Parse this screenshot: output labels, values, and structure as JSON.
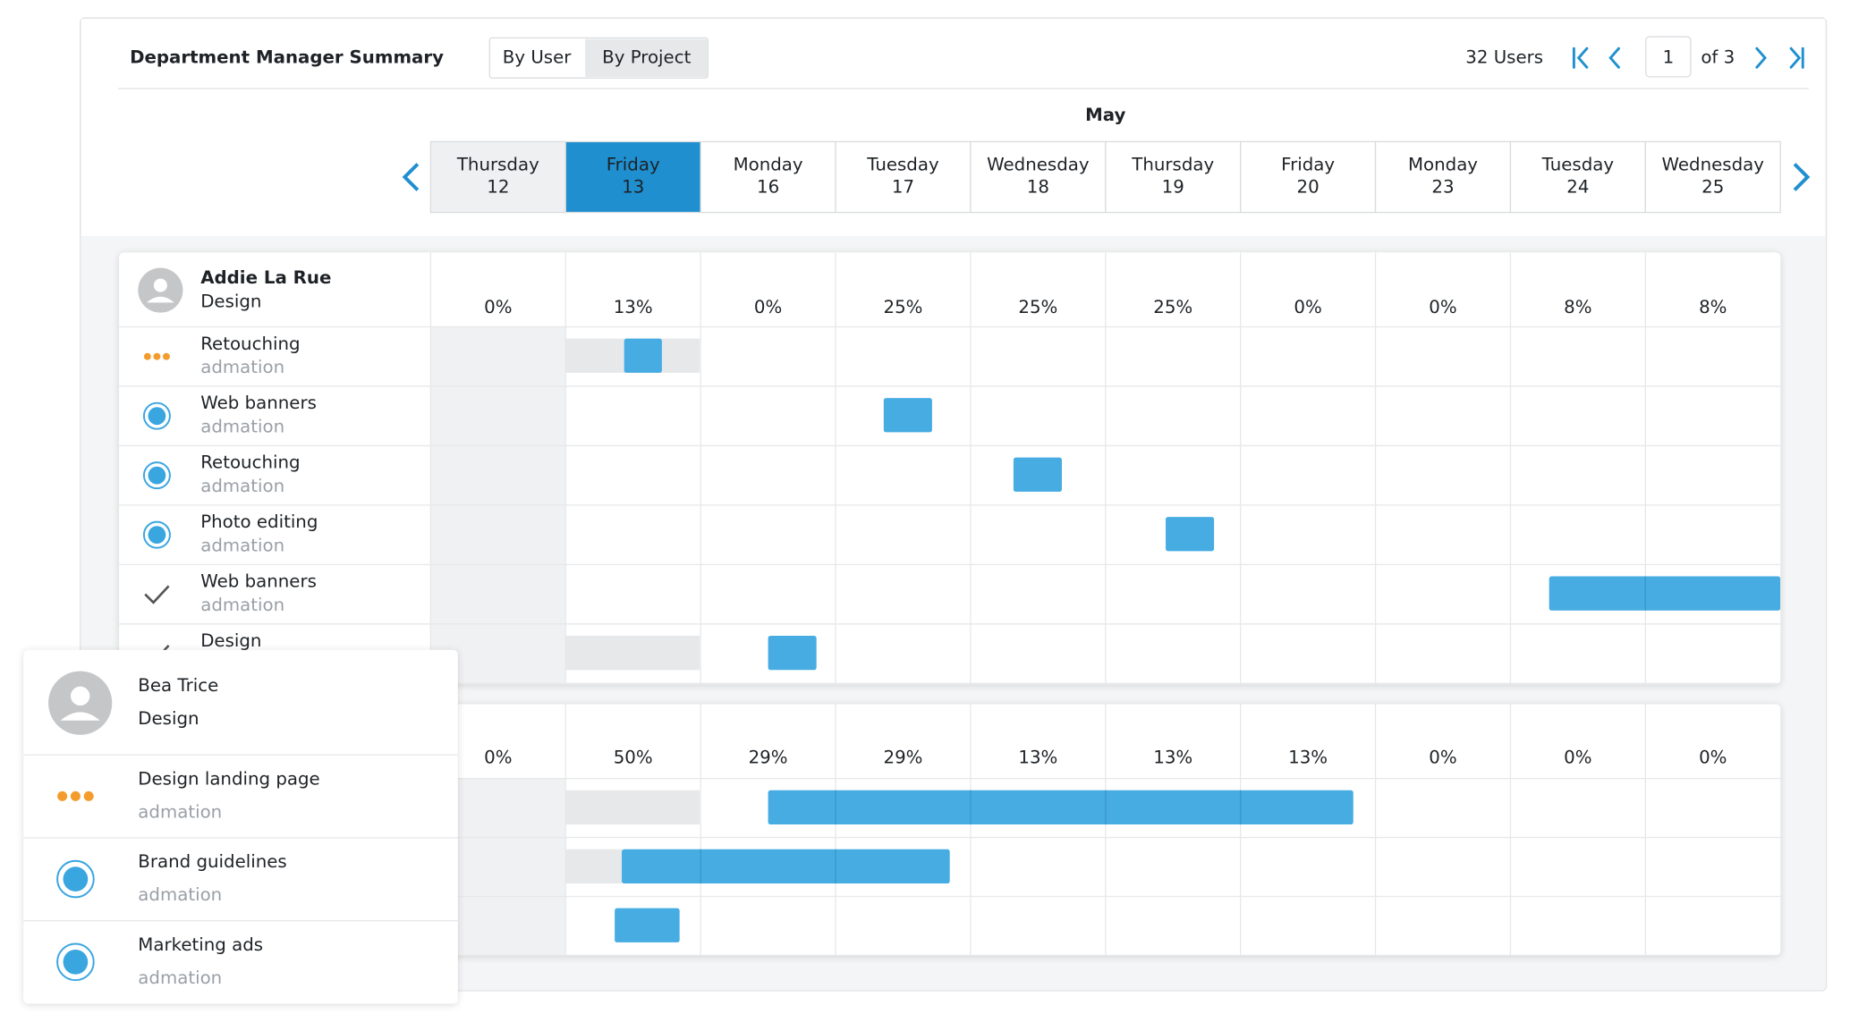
{
  "header": {
    "title": "Department Manager Summary",
    "tabs": [
      "By User",
      "By Project"
    ],
    "users": "32 Users",
    "page": "1",
    "of": "of 3"
  },
  "calendar": {
    "month": "May",
    "days": [
      {
        "weekday": "Thursday",
        "date": "12"
      },
      {
        "weekday": "Friday",
        "date": "13"
      },
      {
        "weekday": "Monday",
        "date": "16"
      },
      {
        "weekday": "Tuesday",
        "date": "17"
      },
      {
        "weekday": "Wednesday",
        "date": "18"
      },
      {
        "weekday": "Thursday",
        "date": "19"
      },
      {
        "weekday": "Friday",
        "date": "20"
      },
      {
        "weekday": "Monday",
        "date": "23"
      },
      {
        "weekday": "Tuesday",
        "date": "24"
      },
      {
        "weekday": "Wednesday",
        "date": "25"
      }
    ]
  },
  "users": [
    {
      "name": "Addie La Rue",
      "dept": "Design",
      "percents": [
        "0%",
        "13%",
        "0%",
        "25%",
        "25%",
        "25%",
        "0%",
        "0%",
        "8%",
        "8%"
      ],
      "tasks": [
        {
          "name": "Retouching",
          "client": "admation"
        },
        {
          "name": "Web banners",
          "client": "admation"
        },
        {
          "name": "Retouching",
          "client": "admation"
        },
        {
          "name": "Photo editing",
          "client": "admation"
        },
        {
          "name": "Web banners",
          "client": "admation"
        },
        {
          "name": "Design"
        }
      ]
    },
    {
      "name": "Bea Trice",
      "dept": "Design",
      "percents": [
        "0%",
        "50%",
        "29%",
        "29%",
        "13%",
        "13%",
        "13%",
        "0%",
        "0%",
        "0%"
      ],
      "tasks": [
        {
          "name": "Design landing page",
          "client": "admation"
        },
        {
          "name": "Brand guidelines",
          "client": "admation"
        },
        {
          "name": "Marketing ads",
          "client": "admation"
        }
      ]
    }
  ]
}
